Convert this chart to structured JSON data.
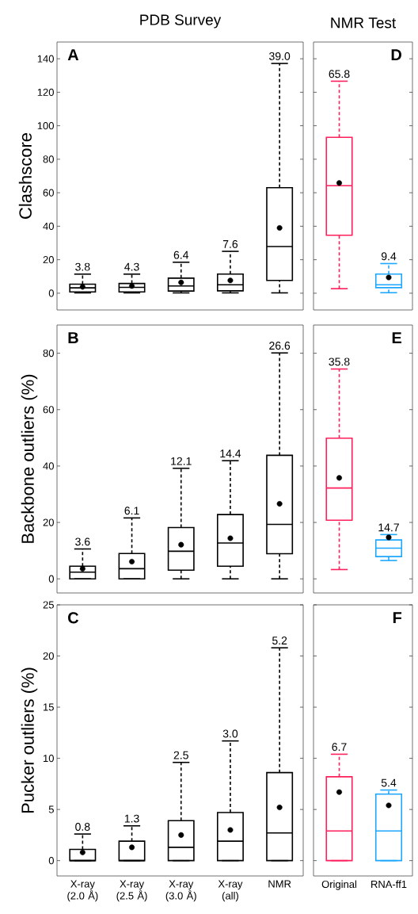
{
  "chart_data": [
    {
      "type": "box",
      "title": "PDB Survey",
      "ylabel": "Clashscore",
      "categories": [
        "X-ray (2.0 Å)",
        "X-ray (2.5 Å)",
        "X-ray (3.0 Å)",
        "X-ray (all)",
        "NMR"
      ],
      "color": "#000000",
      "ylim": [
        -10,
        150
      ],
      "yticks": [
        0,
        20,
        40,
        60,
        80,
        100,
        120,
        140
      ],
      "tick_labels": "y",
      "marker": "circle",
      "line_style": "dashed",
      "boxes": [
        {
          "low": 0.2,
          "q1": 0.8,
          "median": 3.2,
          "q3": 5.4,
          "high": 11.4,
          "mean": 3.8
        },
        {
          "low": 0.2,
          "q1": 0.8,
          "median": 3.5,
          "q3": 5.8,
          "high": 11.4,
          "mean": 4.3
        },
        {
          "low": 0.2,
          "q1": 1.3,
          "median": 4.3,
          "q3": 9.0,
          "high": 18.5,
          "mean": 6.4
        },
        {
          "low": 0.2,
          "q1": 1.4,
          "median": 5.0,
          "q3": 11.4,
          "high": 25.0,
          "mean": 7.6
        },
        {
          "low": 0.2,
          "q1": 7.6,
          "median": 27.9,
          "q3": 63.0,
          "high": 137.2,
          "mean": 39.0
        }
      ],
      "annotations": [
        "A",
        {
          "text": "3.8",
          "x": "X-ray (2.0 Å)",
          "y": 11.4
        },
        {
          "text": "4.3",
          "x": "X-ray (2.5 Å)",
          "y": 11.4
        },
        {
          "text": "6.4",
          "x": "X-ray (3.0 Å)",
          "y": 18.5
        },
        {
          "text": "7.6",
          "x": "X-ray (all)",
          "y": 25.0
        },
        {
          "text": "39.0",
          "x": "NMR",
          "y": 137.2
        }
      ]
    },
    {
      "type": "box",
      "ylabel": "Backbone outliers (%)",
      "categories": [
        "X-ray (2.0 Å)",
        "X-ray (2.5 Å)",
        "X-ray (3.0 Å)",
        "X-ray (all)",
        "NMR"
      ],
      "color": "#000000",
      "ylim": [
        -5,
        90
      ],
      "yticks": [
        0,
        20,
        40,
        60,
        80
      ],
      "tick_labels": "y",
      "marker": "circle",
      "line_style": "dashed",
      "boxes": [
        {
          "low": 0,
          "q1": 0,
          "median": 2.4,
          "q3": 4.5,
          "high": 10.6,
          "mean": 3.6
        },
        {
          "low": 0,
          "q1": 0,
          "median": 3.6,
          "q3": 9.0,
          "high": 21.6,
          "mean": 6.1
        },
        {
          "low": 0,
          "q1": 3.1,
          "median": 9.8,
          "q3": 18.2,
          "high": 39.2,
          "mean": 12.1
        },
        {
          "low": 0,
          "q1": 4.5,
          "median": 12.7,
          "q3": 22.8,
          "high": 41.9,
          "mean": 14.4
        },
        {
          "low": 0,
          "q1": 8.9,
          "median": 19.3,
          "q3": 43.8,
          "high": 80.1,
          "mean": 26.6
        }
      ],
      "annotations": [
        "B",
        {
          "text": "3.6",
          "x": "X-ray (2.0 Å)",
          "y": 10.6
        },
        {
          "text": "6.1",
          "x": "X-ray (2.5 Å)",
          "y": 21.6
        },
        {
          "text": "12.1",
          "x": "X-ray (3.0 Å)",
          "y": 39.2
        },
        {
          "text": "14.4",
          "x": "X-ray (all)",
          "y": 41.9
        },
        {
          "text": "26.6",
          "x": "NMR",
          "y": 80.1
        }
      ]
    },
    {
      "type": "box",
      "ylabel": "Pucker outliers (%)",
      "categories": [
        "X-ray (2.0 Å)",
        "X-ray (2.5 Å)",
        "X-ray (3.0 Å)",
        "X-ray (all)",
        "NMR"
      ],
      "color": "#000000",
      "ylim": [
        -1.5,
        25
      ],
      "yticks": [
        0,
        5,
        10,
        15,
        20,
        25
      ],
      "marker": "circle",
      "line_style": "dashed",
      "boxes": [
        {
          "low": 0,
          "q1": 0,
          "median": 0,
          "q3": 1.1,
          "high": 2.6,
          "mean": 0.8
        },
        {
          "low": 0,
          "q1": 0,
          "median": 0,
          "q3": 1.9,
          "high": 3.4,
          "mean": 1.3
        },
        {
          "low": 0,
          "q1": 0,
          "median": 1.3,
          "q3": 3.9,
          "high": 9.6,
          "mean": 2.5
        },
        {
          "low": 0,
          "q1": 0,
          "median": 1.9,
          "q3": 4.7,
          "high": 11.7,
          "mean": 3.0
        },
        {
          "low": 0,
          "q1": 0,
          "median": 2.7,
          "q3": 8.6,
          "high": 20.8,
          "mean": 5.2
        }
      ],
      "annotations": [
        "C",
        {
          "text": "0.8",
          "x": "X-ray (2.0 Å)",
          "y": 2.6
        },
        {
          "text": "1.3",
          "x": "X-ray (2.5 Å)",
          "y": 3.4
        },
        {
          "text": "2.5",
          "x": "X-ray (3.0 Å)",
          "y": 9.6
        },
        {
          "text": "3.0",
          "x": "X-ray (all)",
          "y": 11.7
        },
        {
          "text": "5.2",
          "x": "NMR",
          "y": 20.8
        }
      ]
    },
    {
      "type": "box",
      "title": "NMR Test",
      "categories": [
        "Original",
        "RNA-ff1"
      ],
      "colors": [
        "#ff1f5a",
        "#1ea7ff"
      ],
      "ylim": [
        -10,
        150
      ],
      "yticks": [
        0,
        20,
        40,
        60,
        80,
        100,
        120,
        140
      ],
      "tick_labels": false,
      "marker": "circle",
      "line_style": "dashed",
      "boxes": [
        {
          "low": 2.7,
          "q1": 34.6,
          "median": 64.2,
          "q3": 93.1,
          "high": 126.6,
          "mean": 65.8
        },
        {
          "low": 0.3,
          "q1": 3.3,
          "median": 5.0,
          "q3": 11.4,
          "high": 17.7,
          "mean": 9.4
        }
      ],
      "annotations": [
        "D",
        {
          "text": "65.8",
          "x": "Original",
          "y": 126.6
        },
        {
          "text": "9.4",
          "x": "RNA-ff1",
          "y": 17.7
        }
      ]
    },
    {
      "type": "box",
      "categories": [
        "Original",
        "RNA-ff1"
      ],
      "colors": [
        "#ff1f5a",
        "#1ea7ff"
      ],
      "ylim": [
        -5,
        90
      ],
      "yticks": [
        0,
        20,
        40,
        60,
        80
      ],
      "tick_labels": false,
      "marker": "circle",
      "line_style": "dashed",
      "boxes": [
        {
          "low": 3.3,
          "q1": 20.8,
          "median": 32.2,
          "q3": 49.9,
          "high": 74.4,
          "mean": 35.8
        },
        {
          "low": 6.5,
          "q1": 7.9,
          "median": 10.9,
          "q3": 13.8,
          "high": 15.7,
          "mean": 14.7
        }
      ],
      "annotations": [
        "E",
        {
          "text": "35.8",
          "x": "Original",
          "y": 74.4
        },
        {
          "text": "14.7",
          "x": "RNA-ff1",
          "y": 15.7
        }
      ]
    },
    {
      "type": "box",
      "categories": [
        "Original",
        "RNA-ff1"
      ],
      "colors": [
        "#ff1f5a",
        "#1ea7ff"
      ],
      "ylim": [
        -1.5,
        25
      ],
      "yticks": [
        0,
        5,
        10,
        15,
        20,
        25
      ],
      "tick_labels": "x",
      "marker": "circle",
      "line_style": "dashed",
      "boxes": [
        {
          "low": 0,
          "q1": 0,
          "median": 2.9,
          "q3": 8.2,
          "high": 10.4,
          "mean": 6.7
        },
        {
          "low": 0,
          "q1": 0,
          "median": 2.9,
          "q3": 6.5,
          "high": 6.9,
          "mean": 5.4
        }
      ],
      "annotations": [
        "F",
        {
          "text": "6.7",
          "x": "Original",
          "y": 10.4
        },
        {
          "text": "5.4",
          "x": "RNA-ff1",
          "y": 6.9
        }
      ]
    }
  ]
}
